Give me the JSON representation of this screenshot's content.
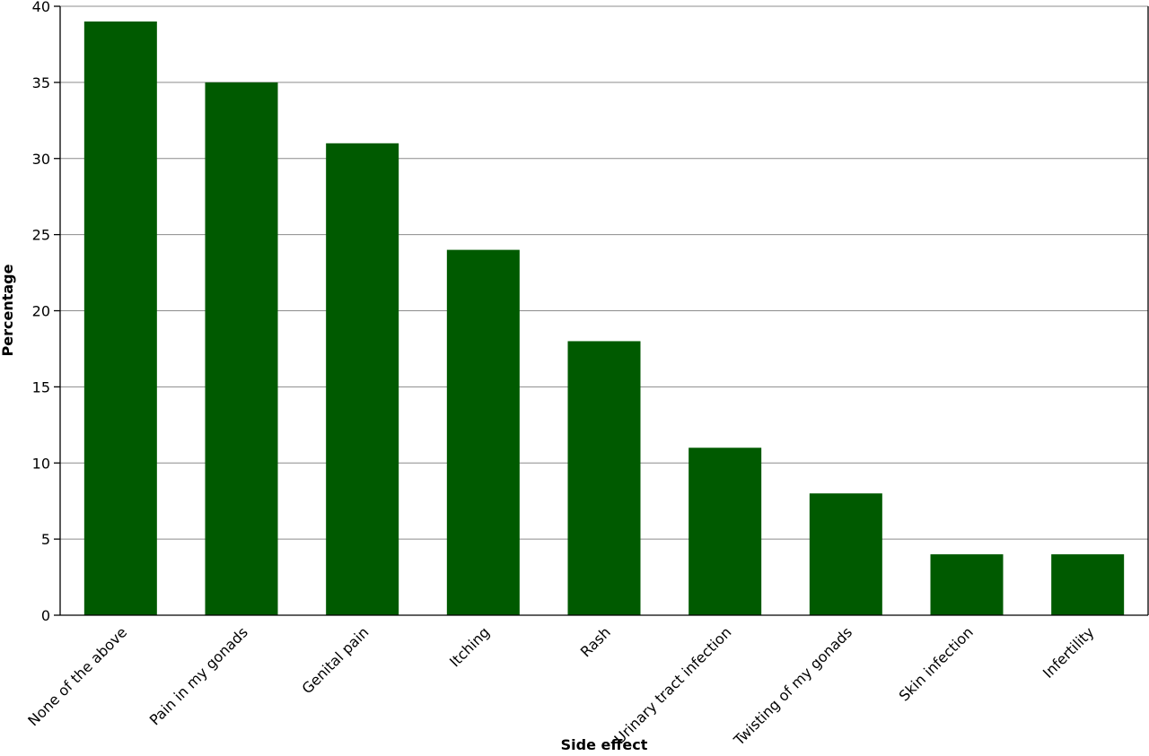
{
  "chart_data": {
    "type": "bar",
    "categories": [
      "None of the above",
      "Pain in my gonads",
      "Genital pain",
      "Itching",
      "Rash",
      "Urinary tract infection",
      "Twisting of my gonads",
      "Skin infection",
      "Infertility"
    ],
    "values": [
      39,
      35,
      31,
      24,
      18,
      11,
      8,
      4,
      4
    ],
    "xlabel": "Side effect",
    "ylabel": "Percentage",
    "ylim": [
      0,
      40
    ],
    "yticks": [
      0,
      5,
      10,
      15,
      20,
      25,
      30,
      35,
      40
    ],
    "grid": true,
    "bar_color": "#005a00",
    "legend": "none"
  }
}
